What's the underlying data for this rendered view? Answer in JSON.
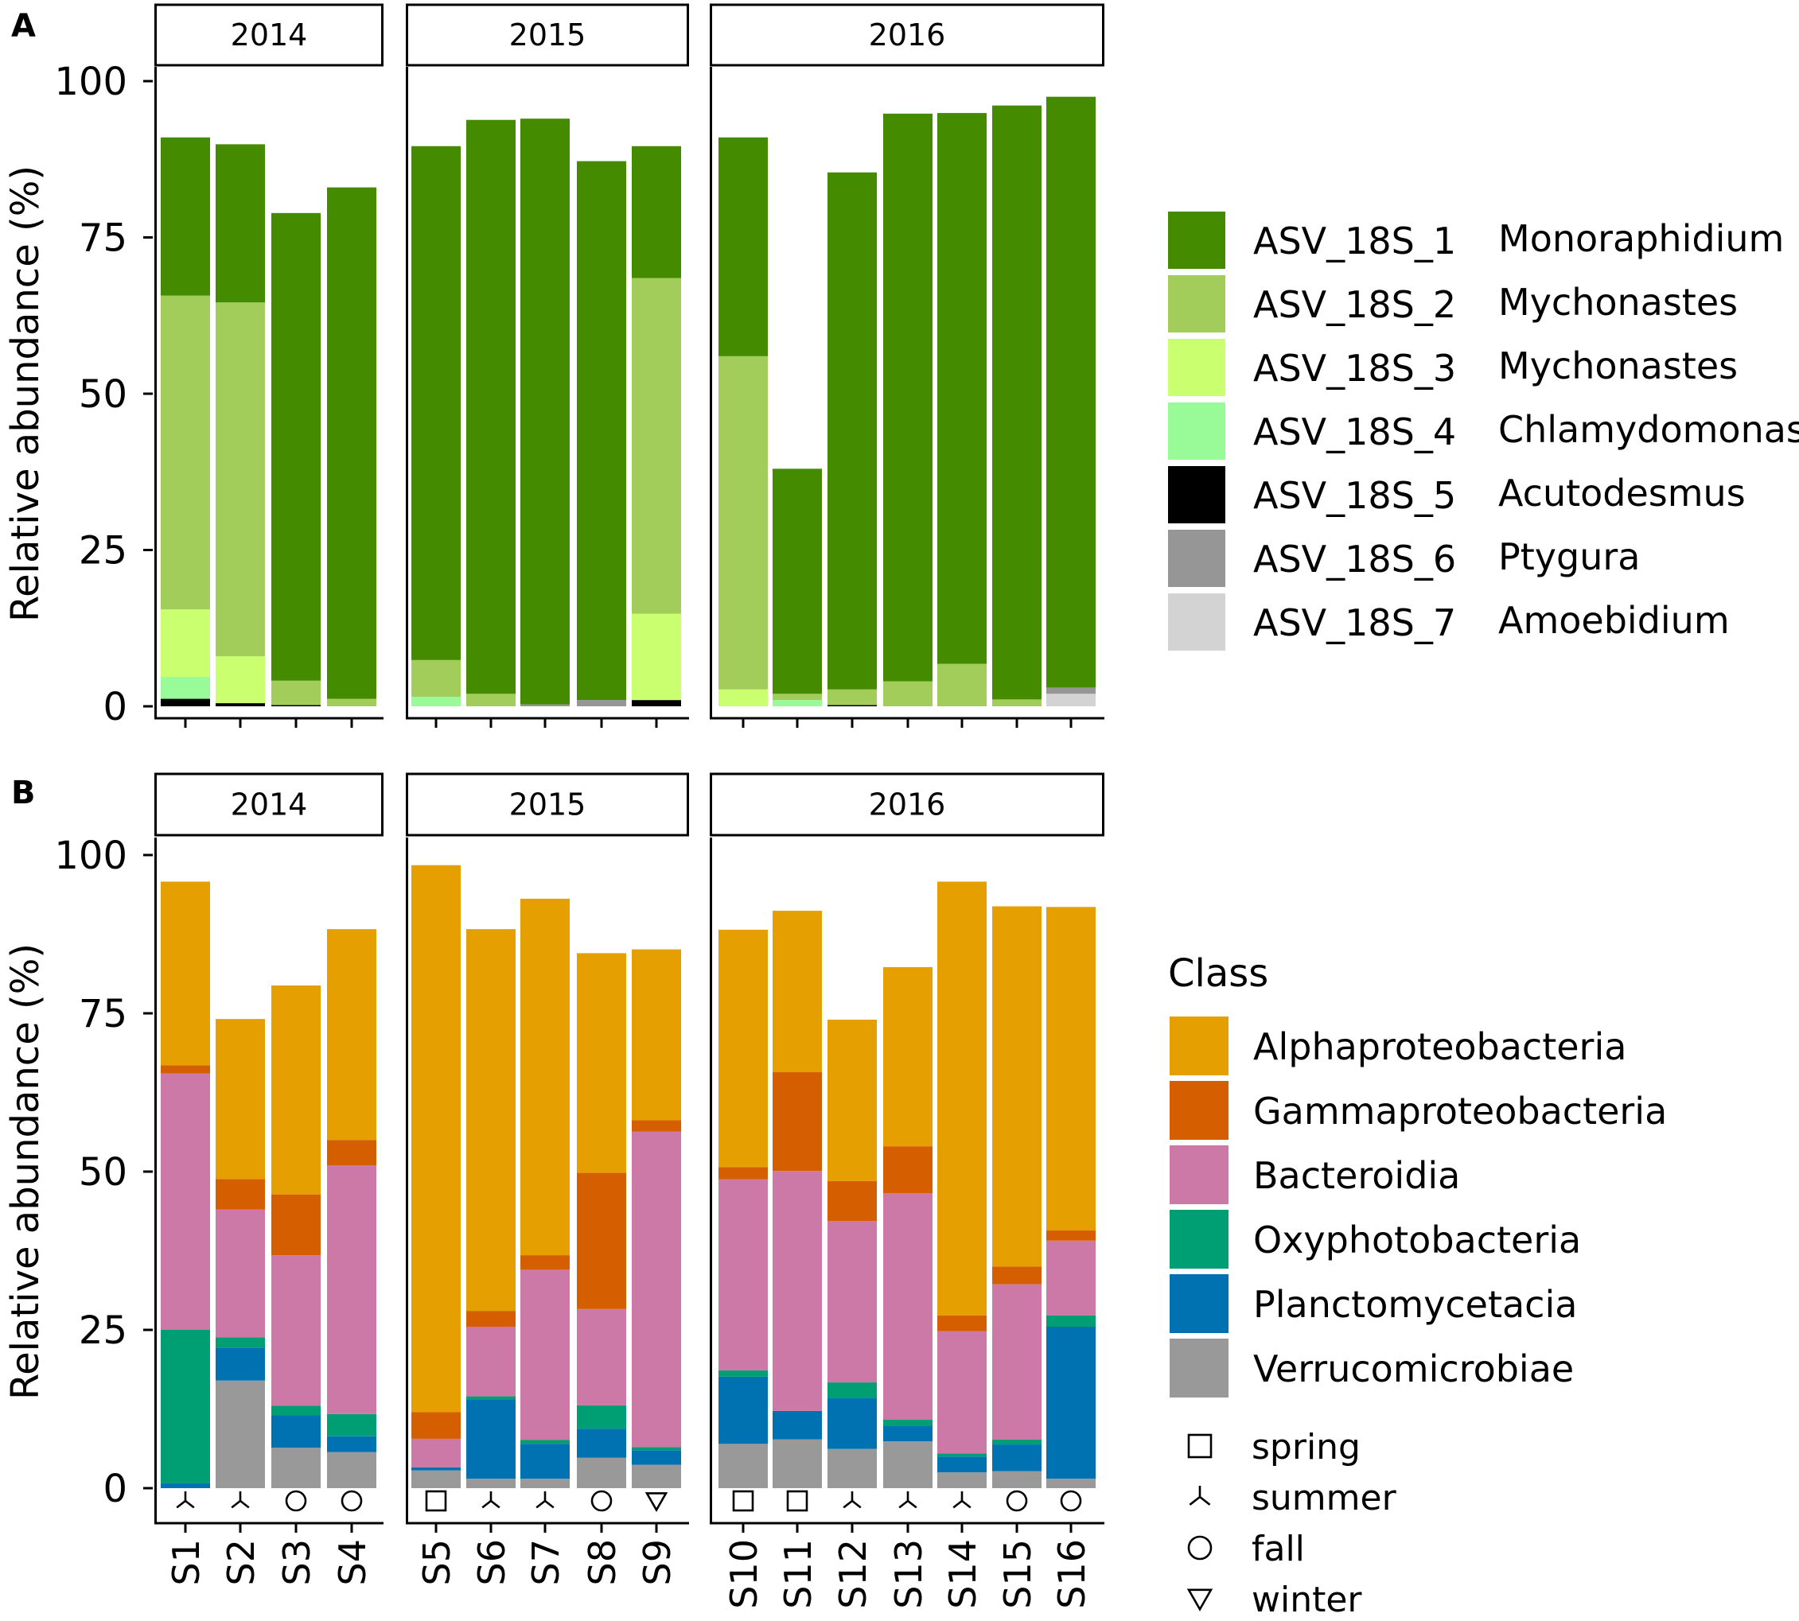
{
  "panels": [
    {
      "label": "A"
    },
    {
      "label": "B"
    }
  ],
  "chart_data": [
    {
      "type": "bar",
      "stacked": true,
      "panel": "A",
      "ylabel": "Relative abundance (%)",
      "ylim": [
        0,
        100
      ],
      "yticks": [
        "0",
        "25",
        "50",
        "75",
        "100"
      ],
      "facets": [
        "2014",
        "2015",
        "2016"
      ],
      "categories": [
        "S1",
        "S2",
        "S3",
        "S4",
        "S5",
        "S6",
        "S7",
        "S8",
        "S9",
        "S10",
        "S11",
        "S12",
        "S13",
        "S14",
        "S15",
        "S16"
      ],
      "facet_of": [
        0,
        0,
        0,
        0,
        1,
        1,
        1,
        1,
        1,
        2,
        2,
        2,
        2,
        2,
        2,
        2
      ],
      "legend_title": "",
      "series": [
        {
          "name": "ASV_18S_7",
          "taxon": "Amoebidium",
          "color": "#d3d3d3",
          "values": [
            0,
            0,
            0,
            0,
            0,
            0,
            0,
            0,
            0,
            0,
            0,
            0,
            0,
            0,
            0,
            2
          ]
        },
        {
          "name": "ASV_18S_6",
          "taxon": "Ptygura",
          "color": "#969696",
          "values": [
            0,
            0,
            0,
            0,
            0,
            0,
            0.3,
            1,
            0,
            0,
            0,
            0,
            0,
            0,
            0,
            1
          ]
        },
        {
          "name": "ASV_18S_5",
          "taxon": "Acutodesmus",
          "color": "#000000",
          "values": [
            1.2,
            0.5,
            0.2,
            0,
            0,
            0,
            0,
            0,
            1,
            0,
            0,
            0.2,
            0,
            0,
            0,
            0
          ]
        },
        {
          "name": "ASV_18S_4",
          "taxon": "Chlamydomonas",
          "color": "#98fb98",
          "values": [
            3.5,
            0,
            0,
            0,
            1.5,
            0,
            0,
            0,
            0,
            0,
            1,
            0,
            0,
            0,
            0,
            0
          ]
        },
        {
          "name": "ASV_18S_3",
          "taxon": "Mychonastes",
          "color": "#caff70",
          "values": [
            10.8,
            7.5,
            0,
            0,
            0,
            0,
            0,
            0,
            13.8,
            2.7,
            0,
            0,
            0,
            0,
            0,
            0
          ]
        },
        {
          "name": "ASV_18S_2",
          "taxon": "Mychonastes",
          "color": "#a2cd5a",
          "values": [
            50.2,
            56.6,
            3.9,
            1.2,
            5.9,
            2,
            0,
            0,
            53.7,
            53.3,
            1,
            2.5,
            4,
            6.8,
            1.1,
            0
          ]
        },
        {
          "name": "ASV_18S_1",
          "taxon": "Monoraphidium",
          "color": "#458b00",
          "values": [
            25.3,
            25.3,
            74.8,
            81.8,
            82.2,
            91.8,
            93.7,
            86.2,
            21.1,
            35,
            36,
            82.7,
            90.8,
            88.1,
            95,
            94.5
          ]
        }
      ],
      "season_markers": []
    },
    {
      "type": "bar",
      "stacked": true,
      "panel": "B",
      "ylabel": "Relative abundance (%)",
      "ylim": [
        0,
        100
      ],
      "yticks": [
        "0",
        "25",
        "50",
        "75",
        "100"
      ],
      "facets": [
        "2014",
        "2015",
        "2016"
      ],
      "categories": [
        "S1",
        "S2",
        "S3",
        "S4",
        "S5",
        "S6",
        "S7",
        "S8",
        "S9",
        "S10",
        "S11",
        "S12",
        "S13",
        "S14",
        "S15",
        "S16"
      ],
      "facet_of": [
        0,
        0,
        0,
        0,
        1,
        1,
        1,
        1,
        1,
        2,
        2,
        2,
        2,
        2,
        2,
        2
      ],
      "legend_title": "Class",
      "series": [
        {
          "name": "Verrucomicrobiae",
          "color": "#999999",
          "values": [
            0,
            17,
            6.4,
            5.7,
            2.8,
            1.5,
            1.5,
            4.8,
            3.7,
            7,
            7.7,
            6.2,
            7.4,
            2.5,
            2.7,
            1.5
          ]
        },
        {
          "name": "Planctomycetacia",
          "color": "#0072b2",
          "values": [
            0.8,
            5.2,
            5.1,
            2.5,
            0.5,
            12.5,
            5.5,
            4.6,
            2.3,
            10.6,
            4.5,
            8,
            2.4,
            2.5,
            4.2,
            24
          ]
        },
        {
          "name": "Oxyphotobacteria",
          "color": "#009e73",
          "values": [
            24.2,
            1.6,
            1.5,
            3.5,
            0,
            0.5,
            0.6,
            3.7,
            0.5,
            1,
            0,
            2.5,
            1,
            0.5,
            0.8,
            1.8
          ]
        },
        {
          "name": "Bacteroidia",
          "color": "#cc79a7",
          "values": [
            40.5,
            20.2,
            23.8,
            39.3,
            4.5,
            11,
            26.9,
            15.2,
            49.8,
            30.2,
            37.9,
            25.5,
            35.8,
            19.3,
            24.5,
            11.8
          ]
        },
        {
          "name": "Gammaproteobacteria",
          "color": "#d55e00",
          "values": [
            1.3,
            4.8,
            9.6,
            4,
            4.2,
            2.5,
            2.3,
            21.5,
            1.8,
            1.9,
            15.6,
            6.3,
            7.4,
            2.5,
            2.8,
            1.6
          ]
        },
        {
          "name": "Alphaproteobacteria",
          "color": "#e69f00",
          "values": [
            29,
            25.3,
            33,
            33.3,
            86.4,
            60.3,
            56.3,
            34.7,
            27,
            37.5,
            25.5,
            25.5,
            28.3,
            68.5,
            56.9,
            51.1
          ]
        }
      ],
      "season_markers": [
        "summer",
        "summer",
        "fall",
        "fall",
        "spring",
        "summer",
        "summer",
        "fall",
        "winter",
        "spring",
        "spring",
        "summer",
        "summer",
        "summer",
        "fall",
        "fall"
      ],
      "season_legend": [
        {
          "key": "spring",
          "label": "spring"
        },
        {
          "key": "summer",
          "label": "summer"
        },
        {
          "key": "fall",
          "label": "fall"
        },
        {
          "key": "winter",
          "label": "winter"
        }
      ]
    }
  ]
}
